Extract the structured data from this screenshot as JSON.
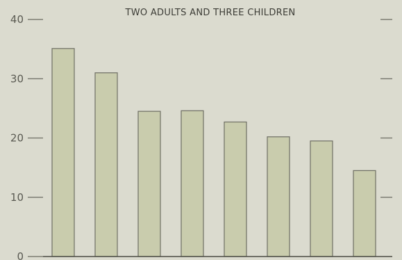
{
  "chart_data": {
    "type": "bar",
    "title": "TWO ADULTS AND THREE CHILDREN",
    "xlabel": "",
    "ylabel": "",
    "categories": [
      "",
      "",
      "",
      "",
      "",
      "",
      "",
      ""
    ],
    "values": [
      35.1,
      31.0,
      24.5,
      24.6,
      22.7,
      20.2,
      19.5,
      14.5
    ],
    "ylim": [
      0,
      40
    ],
    "yticks": [
      0,
      10,
      20,
      30,
      40
    ],
    "ytick_labels": [
      "0",
      "10",
      "20",
      "30",
      "40"
    ],
    "grid": false,
    "bar_color": "#c9ccad",
    "background_color": "#dbdbcf"
  }
}
